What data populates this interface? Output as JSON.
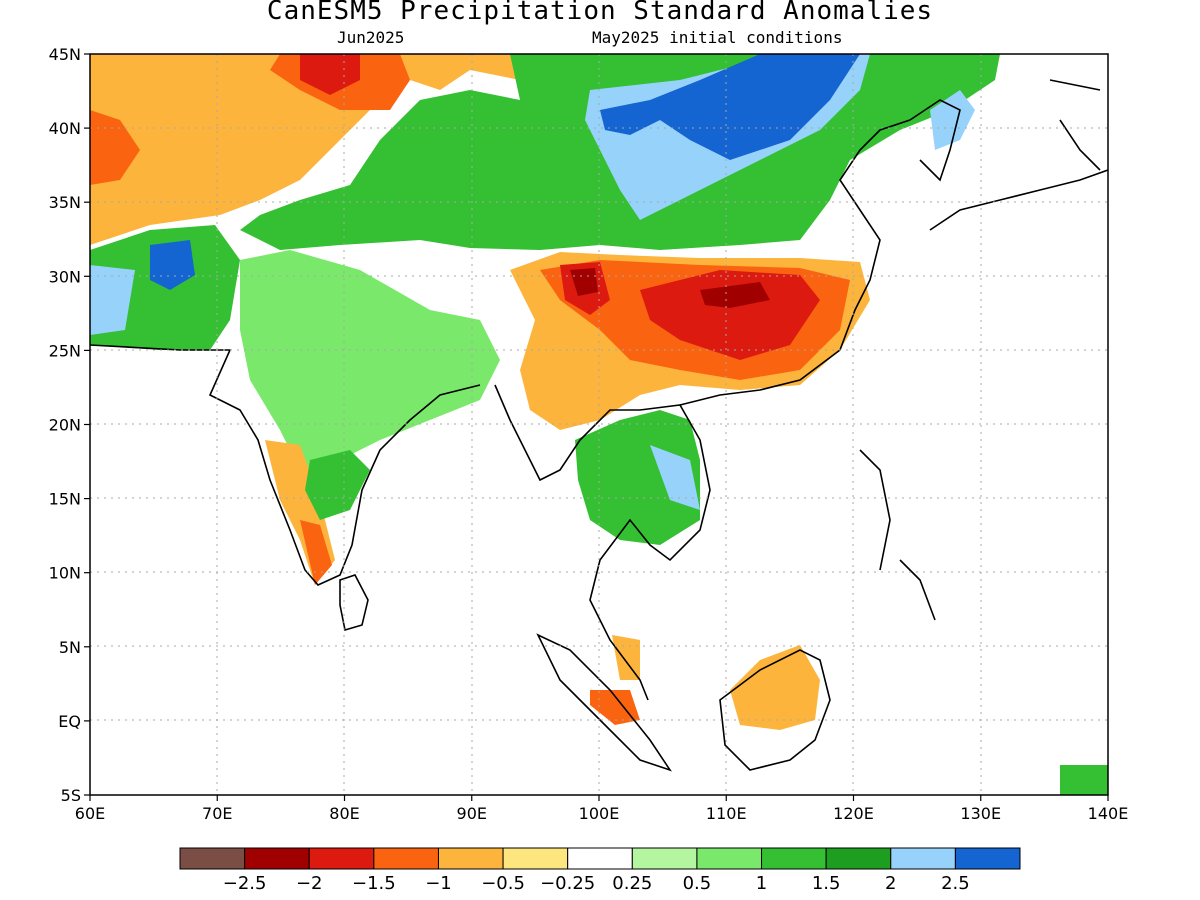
{
  "title": "CanESM5 Precipitation Standard Anomalies",
  "valid_month": "Jun2025",
  "init_note": "May2025 initial conditions",
  "lon_ticks": [
    "60E",
    "70E",
    "80E",
    "90E",
    "100E",
    "110E",
    "120E",
    "130E",
    "140E"
  ],
  "lat_ticks": [
    "45N",
    "40N",
    "35N",
    "30N",
    "25N",
    "20N",
    "15N",
    "10N",
    "5N",
    "EQ",
    "5S"
  ],
  "colorbar": {
    "colors": [
      "#7a4e44",
      "#a00000",
      "#dc1a10",
      "#fa6410",
      "#fdb43c",
      "#fee67e",
      "#ffffff",
      "#b4f5a0",
      "#7ae86a",
      "#34c032",
      "#1e9e20",
      "#96d2fa",
      "#1464d2"
    ],
    "labels": [
      "−2.5",
      "−2",
      "−1.5",
      "−1",
      "−0.5",
      "−0.25",
      "0.25",
      "0.5",
      "1",
      "1.5",
      "2",
      "2.5"
    ]
  }
}
